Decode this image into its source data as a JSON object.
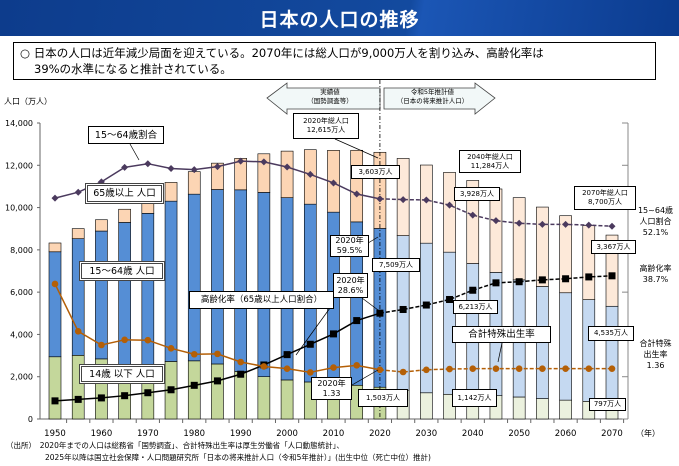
{
  "header": {
    "title": "日本の人口の推移"
  },
  "lead": {
    "line1": "○ 日本の人口は近年減少局面を迎えている。2070年には総人口が9,000万人を割り込み、高齢化率は",
    "line2": "39%の水準になると推計されている。"
  },
  "phase": {
    "actual_1": "実績値",
    "actual_2": "（国勢調査等）",
    "proj_1": "令和5年推計値",
    "proj_2": "（日本の将来推計人口）"
  },
  "annotations": {
    "ratio_1564": "15～64歳割合",
    "pop65": "65歳以上 人口",
    "pop1564": "15～64歳 人口",
    "aging": "高齢化率（65歳以上人口割合）",
    "pop14": "14歳 以下 人口",
    "total2020_1": "2020年総人口",
    "total2020_2": "12,615万人",
    "p65_2020": "3,603万人",
    "total2040_1": "2040年総人口",
    "total2040_2": "11,284万人",
    "p65_2040": "3,928万人",
    "total2070_1": "2070年総人口",
    "total2070_2": "8,700万人",
    "ratio2020_1": "2020年",
    "ratio2020_2": "59.5%",
    "p1564_2020": "7,509万人",
    "p65_2070": "3,367万人",
    "aging2020_1": "2020年",
    "aging2020_2": "28.6%",
    "p1564_2040": "6,213万人",
    "tfr_label": "合計特殊出生率",
    "p1564_2070": "4,535万人",
    "tfr2020_1": "2020年",
    "tfr2020_2": "1.33",
    "p14_2020": "1,503万人",
    "p14_2040": "1,142万人",
    "p14_2070": "797万人"
  },
  "right_labels": {
    "r1": "15~64歳",
    "r2": "人口割合",
    "r3": "52.1%",
    "a1": "高齢化率",
    "a2": "38.7%",
    "t1": "合計特殊",
    "t2": "出生率",
    "t3": "1.36"
  },
  "footnote": {
    "line1": "（出所）　2020年までの人口は総務省「国勢調査」、合計特殊出生率は厚生労働省「人口動態統計」、",
    "line2": "2025年以降は国立社会保障・人口問題研究所「日本の将来推計人口（令和5年推計）」(出生中位（死亡中位）推計)"
  },
  "chart_data": {
    "type": "bar",
    "stacked": true,
    "ylabel": "人口（万人）",
    "xlabel": "（年）",
    "ylim": [
      0,
      14000
    ],
    "yticks": [
      "0",
      "2,000",
      "4,000",
      "6,000",
      "8,000",
      "10,000",
      "12,000",
      "14,000"
    ],
    "xticks": [
      "1950",
      "1960",
      "1970",
      "1980",
      "1990",
      "2000",
      "2010",
      "2020",
      "2030",
      "2040",
      "2050",
      "2060",
      "2070"
    ],
    "categories": [
      1950,
      1955,
      1960,
      1965,
      1970,
      1975,
      1980,
      1985,
      1990,
      1995,
      2000,
      2005,
      2010,
      2015,
      2020,
      2025,
      2030,
      2035,
      2040,
      2045,
      2050,
      2055,
      2060,
      2065,
      2070
    ],
    "projection_from": 2025,
    "series": [
      {
        "name": "14歳以下人口",
        "values": [
          2943,
          3012,
          2843,
          2553,
          2515,
          2722,
          2751,
          2603,
          2249,
          2001,
          1847,
          1752,
          1680,
          1595,
          1503,
          1363,
          1240,
          1169,
          1142,
          1103,
          1041,
          966,
          893,
          836,
          797
        ]
      },
      {
        "name": "15～64歳人口",
        "values": [
          4966,
          5517,
          6047,
          6744,
          7212,
          7581,
          7883,
          8251,
          8590,
          8716,
          8622,
          8409,
          8103,
          7728,
          7509,
          7310,
          7076,
          6722,
          6213,
          5832,
          5540,
          5302,
          5078,
          4809,
          4535
        ]
      },
      {
        "name": "65歳以上人口",
        "values": [
          416,
          475,
          535,
          624,
          739,
          887,
          1065,
          1247,
          1489,
          1826,
          2201,
          2576,
          2925,
          3387,
          3603,
          3653,
          3696,
          3773,
          3928,
          3945,
          3888,
          3756,
          3644,
          3504,
          3367
        ]
      }
    ],
    "lines": [
      {
        "name": "15～64歳割合",
        "unit": "%",
        "axis_max": 80,
        "values": [
          59.7,
          61.3,
          64.1,
          68.0,
          69.0,
          67.7,
          67.4,
          68.2,
          69.7,
          69.5,
          68.1,
          66.1,
          63.8,
          60.8,
          59.5,
          59.3,
          59.2,
          57.8,
          55.1,
          53.6,
          52.9,
          52.6,
          52.6,
          52.4,
          52.1
        ]
      },
      {
        "name": "高齢化率",
        "unit": "%",
        "axis_max": 80,
        "values": [
          4.9,
          5.3,
          5.7,
          6.3,
          7.1,
          7.9,
          9.1,
          10.3,
          12.1,
          14.6,
          17.4,
          20.2,
          23.0,
          26.6,
          28.6,
          29.6,
          30.8,
          32.3,
          34.8,
          36.8,
          37.1,
          37.6,
          37.9,
          38.4,
          38.7
        ]
      },
      {
        "name": "合計特殊出生率",
        "axis_max": 8,
        "values": [
          3.65,
          2.37,
          2.0,
          2.14,
          2.13,
          1.91,
          1.75,
          1.76,
          1.54,
          1.42,
          1.36,
          1.26,
          1.39,
          1.45,
          1.33,
          1.27,
          1.33,
          1.35,
          1.36,
          1.36,
          1.36,
          1.36,
          1.36,
          1.36,
          1.36
        ]
      }
    ],
    "colors": {
      "pop14": "#c4d79b",
      "pop1564": "#558ed5",
      "pop65": "#fcd5b4",
      "pop14_proj": "#ebf1de",
      "pop1564_proj": "#c5d9f1",
      "pop65_proj": "#fde9d9",
      "ratio": "#4b3a5e",
      "aging": "#000000",
      "tfr": "#b45f06"
    }
  }
}
